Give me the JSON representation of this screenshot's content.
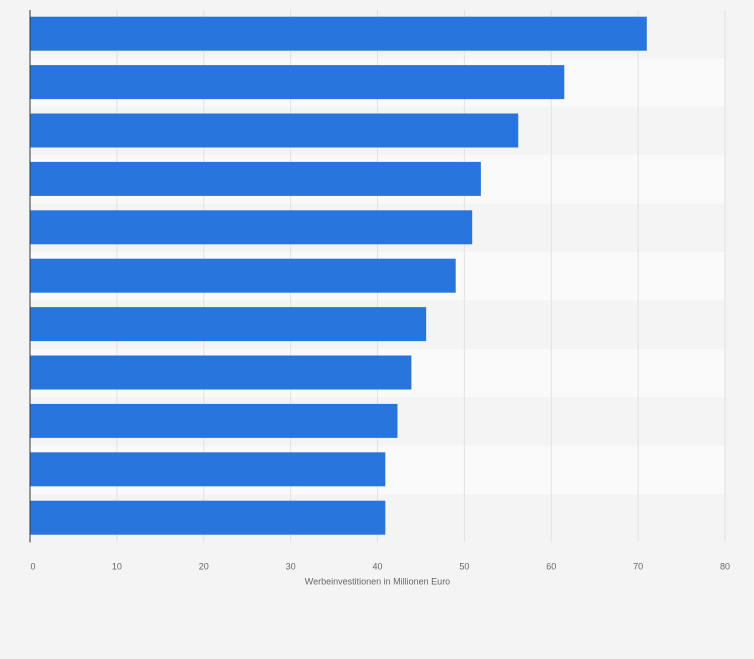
{
  "chart_data": {
    "type": "bar",
    "orientation": "horizontal",
    "categories": [
      "",
      "",
      "",
      "",
      "",
      "",
      "",
      "",
      "",
      "",
      ""
    ],
    "values": [
      71,
      61.5,
      56.2,
      51.9,
      50.9,
      49,
      45.6,
      43.9,
      42.3,
      40.9,
      40.9
    ],
    "xlabel": "Werbeinvestitionen in Millionen Euro",
    "xlim": [
      0,
      80
    ],
    "xticks": [
      0,
      10,
      20,
      30,
      40,
      50,
      60,
      70,
      80
    ],
    "grid": true,
    "bar_color": "#2876dd",
    "band_colors": [
      "#f4f4f4",
      "#fafafa"
    ]
  }
}
